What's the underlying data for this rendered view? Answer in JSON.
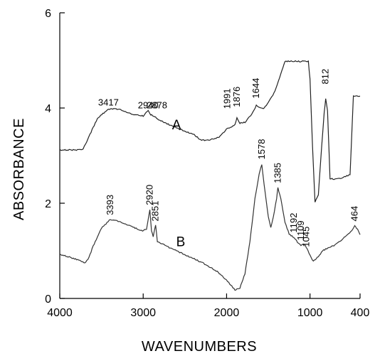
{
  "chart_data": {
    "type": "line",
    "xlabel": "WAVENUMBERS",
    "ylabel": "ABSORBANCE",
    "xlim": [
      4000,
      400
    ],
    "ylim": [
      0,
      6
    ],
    "x_reversed": true,
    "xticks": [
      4000,
      3000,
      2000,
      1000,
      400
    ],
    "yticks": [
      0,
      2,
      4,
      6
    ],
    "grid": false,
    "series": [
      {
        "name": "A",
        "label_pos": [
          2600,
          3.55
        ],
        "color": "#222222",
        "points": [
          [
            4000,
            3.12
          ],
          [
            3800,
            3.12
          ],
          [
            3720,
            3.14
          ],
          [
            3650,
            3.4
          ],
          [
            3550,
            3.78
          ],
          [
            3417,
            3.98
          ],
          [
            3300,
            3.98
          ],
          [
            3150,
            3.88
          ],
          [
            3000,
            3.83
          ],
          [
            2940,
            3.96
          ],
          [
            2910,
            3.86
          ],
          [
            2878,
            3.84
          ],
          [
            2800,
            3.74
          ],
          [
            2600,
            3.58
          ],
          [
            2400,
            3.45
          ],
          [
            2300,
            3.32
          ],
          [
            2200,
            3.33
          ],
          [
            2100,
            3.38
          ],
          [
            2050,
            3.46
          ],
          [
            1991,
            3.58
          ],
          [
            1940,
            3.6
          ],
          [
            1900,
            3.66
          ],
          [
            1876,
            3.79
          ],
          [
            1840,
            3.68
          ],
          [
            1780,
            3.7
          ],
          [
            1700,
            3.86
          ],
          [
            1644,
            4.05
          ],
          [
            1600,
            4.0
          ],
          [
            1560,
            3.98
          ],
          [
            1500,
            4.12
          ],
          [
            1420,
            4.35
          ],
          [
            1350,
            4.72
          ],
          [
            1300,
            4.98
          ],
          [
            1250,
            4.98
          ],
          [
            1100,
            4.98
          ],
          [
            1020,
            4.98
          ],
          [
            1000,
            4.6
          ],
          [
            970,
            3.2
          ],
          [
            940,
            2.02
          ],
          [
            900,
            2.18
          ],
          [
            860,
            3.2
          ],
          [
            830,
            3.9
          ],
          [
            812,
            4.2
          ],
          [
            790,
            3.95
          ],
          [
            770,
            3.0
          ],
          [
            760,
            2.52
          ],
          [
            700,
            2.5
          ],
          [
            600,
            2.54
          ],
          [
            520,
            2.6
          ],
          [
            480,
            4.25
          ],
          [
            450,
            4.25
          ],
          [
            400,
            4.25
          ]
        ],
        "peaks": [
          3417,
          2940,
          2878,
          1991,
          1876,
          1644,
          812
        ]
      },
      {
        "name": "B",
        "label_pos": [
          2550,
          1.1
        ],
        "color": "#333333",
        "points": [
          [
            4000,
            0.93
          ],
          [
            3850,
            0.85
          ],
          [
            3760,
            0.8
          ],
          [
            3700,
            0.74
          ],
          [
            3650,
            0.86
          ],
          [
            3600,
            1.1
          ],
          [
            3500,
            1.48
          ],
          [
            3393,
            1.66
          ],
          [
            3300,
            1.62
          ],
          [
            3150,
            1.52
          ],
          [
            3020,
            1.42
          ],
          [
            2960,
            1.45
          ],
          [
            2920,
            1.86
          ],
          [
            2900,
            1.42
          ],
          [
            2880,
            1.3
          ],
          [
            2851,
            1.54
          ],
          [
            2830,
            1.2
          ],
          [
            2700,
            1.08
          ],
          [
            2500,
            0.92
          ],
          [
            2300,
            0.76
          ],
          [
            2100,
            0.55
          ],
          [
            2000,
            0.38
          ],
          [
            1900,
            0.18
          ],
          [
            1840,
            0.22
          ],
          [
            1780,
            0.52
          ],
          [
            1720,
            1.2
          ],
          [
            1660,
            2.1
          ],
          [
            1610,
            2.6
          ],
          [
            1578,
            2.82
          ],
          [
            1550,
            2.4
          ],
          [
            1500,
            1.72
          ],
          [
            1470,
            1.48
          ],
          [
            1440,
            1.7
          ],
          [
            1400,
            2.1
          ],
          [
            1385,
            2.32
          ],
          [
            1350,
            2.1
          ],
          [
            1300,
            1.6
          ],
          [
            1250,
            1.35
          ],
          [
            1192,
            1.28
          ],
          [
            1150,
            1.18
          ],
          [
            1109,
            1.12
          ],
          [
            1080,
            1.15
          ],
          [
            1045,
            1.08
          ],
          [
            1000,
            0.9
          ],
          [
            960,
            0.78
          ],
          [
            900,
            0.88
          ],
          [
            850,
            1.0
          ],
          [
            800,
            1.05
          ],
          [
            700,
            1.12
          ],
          [
            600,
            1.26
          ],
          [
            500,
            1.42
          ],
          [
            464,
            1.52
          ],
          [
            430,
            1.45
          ],
          [
            400,
            1.34
          ]
        ],
        "peaks": [
          3393,
          2920,
          2851,
          1578,
          1385,
          1192,
          1109,
          1045,
          464
        ]
      }
    ],
    "peak_labels": [
      {
        "text": "3417",
        "x": 3417,
        "y": 4.05,
        "rotate": 0
      },
      {
        "text": "2940",
        "x": 2940,
        "y": 3.99,
        "rotate": 0
      },
      {
        "text": "2878",
        "x": 2835,
        "y": 3.99,
        "rotate": 0
      },
      {
        "text": "1991",
        "x": 1991,
        "y": 3.98,
        "rotate": -90
      },
      {
        "text": "1876",
        "x": 1876,
        "y": 4.02,
        "rotate": -90
      },
      {
        "text": "1644",
        "x": 1644,
        "y": 4.2,
        "rotate": -90
      },
      {
        "text": "812",
        "x": 812,
        "y": 4.5,
        "rotate": -90
      },
      {
        "text": "3393",
        "x": 3393,
        "y": 1.75,
        "rotate": -90
      },
      {
        "text": "2920",
        "x": 2920,
        "y": 1.96,
        "rotate": -90
      },
      {
        "text": "2851",
        "x": 2851,
        "y": 1.62,
        "rotate": -90
      },
      {
        "text": "1578",
        "x": 1578,
        "y": 2.92,
        "rotate": -90
      },
      {
        "text": "1385",
        "x": 1385,
        "y": 2.42,
        "rotate": -90
      },
      {
        "text": "1192",
        "x": 1192,
        "y": 1.38,
        "rotate": -90
      },
      {
        "text": "1109",
        "x": 1109,
        "y": 1.22,
        "rotate": -90
      },
      {
        "text": "1045",
        "x": 1045,
        "y": 1.08,
        "rotate": -90
      },
      {
        "text": "464",
        "x": 464,
        "y": 1.62,
        "rotate": -90
      }
    ]
  }
}
